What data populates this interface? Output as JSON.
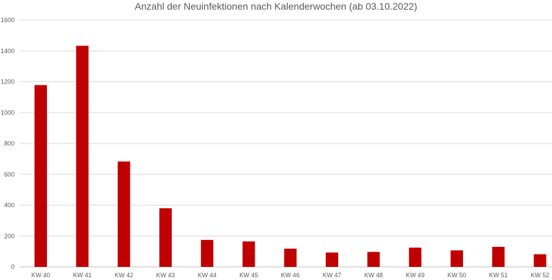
{
  "chart_data": {
    "type": "bar",
    "title": "Anzahl der Neuinfektionen nach Kalenderwochen (ab 03.10.2022)",
    "xlabel": "",
    "ylabel": "",
    "categories": [
      "KW 40",
      "KW 41",
      "KW 42",
      "KW 43",
      "KW 44",
      "KW 45",
      "KW 46",
      "KW 47",
      "KW 48",
      "KW 49",
      "KW 50",
      "KW 51",
      "KW 52"
    ],
    "values": [
      1178,
      1433,
      683,
      380,
      175,
      165,
      118,
      93,
      97,
      125,
      107,
      130,
      82
    ],
    "ylim": [
      0,
      1600
    ],
    "yticks": [
      "0",
      "200",
      "400",
      "600",
      "800",
      "1000",
      "1200",
      "1400",
      "1600"
    ],
    "grid": true,
    "legend": "none",
    "bar_color": "#c00000"
  }
}
